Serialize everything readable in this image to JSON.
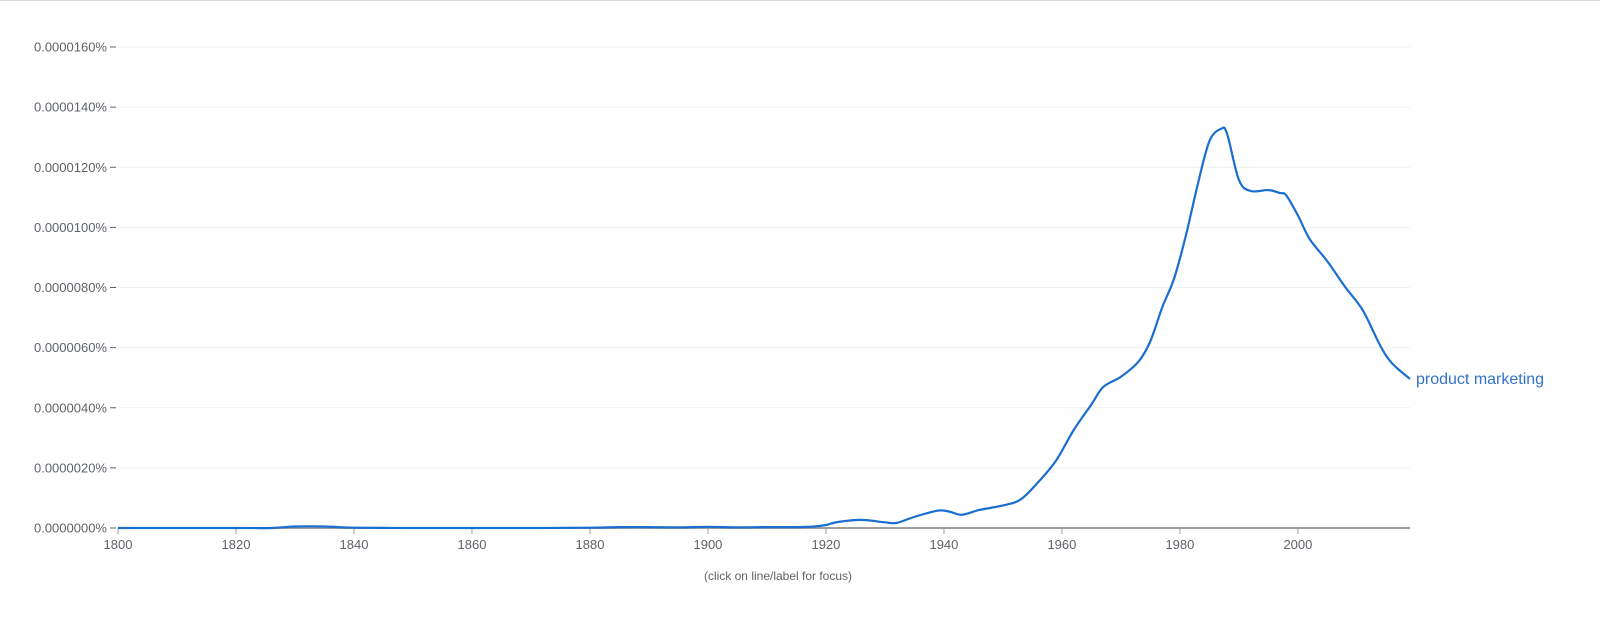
{
  "chart_data": {
    "type": "line",
    "title": "",
    "xlabel": "",
    "ylabel": "",
    "xlim": [
      1800,
      2019
    ],
    "ylim": [
      0,
      1.6e-05
    ],
    "grid": true,
    "x_ticks": [
      "1800",
      "1820",
      "1840",
      "1860",
      "1880",
      "1900",
      "1920",
      "1940",
      "1960",
      "1980",
      "2000"
    ],
    "y_ticks": [
      "0.0000000%",
      "0.0000020%",
      "0.0000040%",
      "0.0000060%",
      "0.0000080%",
      "0.0000100%",
      "0.0000120%",
      "0.0000140%",
      "0.0000160%"
    ],
    "series": [
      {
        "name": "product marketing",
        "color": "#1a6ecf",
        "x": [
          1800,
          1810,
          1820,
          1826,
          1830,
          1835,
          1840,
          1850,
          1860,
          1870,
          1880,
          1885,
          1890,
          1895,
          1900,
          1905,
          1910,
          1915,
          1918,
          1920,
          1922,
          1926,
          1930,
          1932,
          1935,
          1939,
          1941,
          1943,
          1946,
          1950,
          1953,
          1956,
          1959,
          1962,
          1965,
          1967,
          1970,
          1973,
          1975,
          1977,
          1979,
          1981,
          1983,
          1985,
          1987,
          1988,
          1990,
          1992,
          1995,
          1997,
          1998,
          2000,
          2002,
          2005,
          2008,
          2011,
          2014,
          2016,
          2019
        ],
        "values": [
          0,
          0,
          0,
          0,
          5e-08,
          5e-08,
          1e-08,
          0,
          0,
          0,
          1e-08,
          3e-08,
          3e-08,
          2e-08,
          4e-08,
          2e-08,
          3e-08,
          3e-08,
          5e-08,
          1e-07,
          2e-07,
          2.7e-07,
          1.9e-07,
          1.7e-07,
          3.7e-07,
          5.8e-07,
          5.4e-07,
          4.4e-07,
          6e-07,
          7.5e-07,
          9.5e-07,
          1.53e-06,
          2.24e-06,
          3.26e-06,
          4.11e-06,
          4.69e-06,
          5.03e-06,
          5.54e-06,
          6.22e-06,
          7.34e-06,
          8.29e-06,
          9.72e-06,
          1.141e-05,
          1.287e-05,
          1.328e-05,
          1.311e-05,
          1.158e-05,
          1.121e-05,
          1.124e-05,
          1.114e-05,
          1.107e-05,
          1.04e-05,
          9.61e-06,
          8.87e-06,
          8.02e-06,
          7.24e-06,
          6.05e-06,
          5.47e-06,
          4.96e-06
        ]
      }
    ],
    "legend": "inline-end-of-line",
    "annotation": "(click on line/label for focus)"
  }
}
